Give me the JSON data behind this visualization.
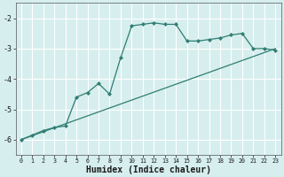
{
  "xlabel": "Humidex (Indice chaleur)",
  "bg_color": "#d6eeee",
  "line_color": "#2e7d72",
  "grid_color": "#b8d8d8",
  "xlim": [
    -0.5,
    23.5
  ],
  "ylim": [
    -6.5,
    -1.5
  ],
  "yticks": [
    -6,
    -5,
    -4,
    -3,
    -2
  ],
  "xticks": [
    0,
    1,
    2,
    3,
    4,
    5,
    6,
    7,
    8,
    9,
    10,
    11,
    12,
    13,
    14,
    15,
    16,
    17,
    18,
    19,
    20,
    21,
    22,
    23
  ],
  "line1_x": [
    0,
    1,
    2,
    3,
    4,
    5,
    6,
    7,
    8,
    9,
    10,
    11,
    12,
    13,
    14,
    15,
    16,
    17,
    18,
    19,
    20,
    21,
    22,
    23
  ],
  "line2_x": [
    0,
    1,
    2,
    3,
    4,
    5,
    6,
    7,
    8,
    9,
    10,
    11,
    12,
    13,
    14,
    15,
    16,
    17,
    18,
    19,
    20,
    21,
    22,
    23
  ],
  "line2_y": [
    -6.0,
    -5.85,
    -5.7,
    -5.6,
    -5.55,
    -4.6,
    -4.45,
    -4.15,
    -4.5,
    -3.3,
    -2.25,
    -2.2,
    -2.15,
    -2.2,
    -2.2,
    -2.75,
    -2.75,
    -2.7,
    -2.65,
    -2.55,
    -2.5,
    -3.0,
    -3.0,
    -3.05
  ]
}
